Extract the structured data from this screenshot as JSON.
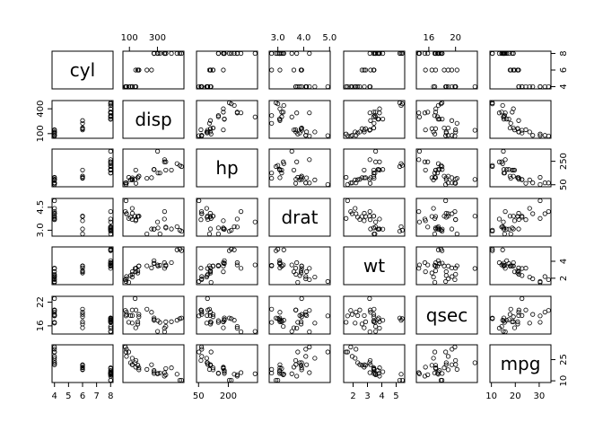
{
  "chart_data": {
    "type": "scatter",
    "kind": "scatterplot-matrix",
    "title": "",
    "variables": [
      "cyl",
      "disp",
      "hp",
      "drat",
      "wt",
      "qsec",
      "mpg"
    ],
    "ranges": {
      "cyl": [
        4,
        8
      ],
      "disp": [
        71.1,
        472
      ],
      "hp": [
        52,
        335
      ],
      "drat": [
        2.76,
        4.93
      ],
      "wt": [
        1.513,
        5.424
      ],
      "qsec": [
        14.5,
        22.9
      ],
      "mpg": [
        10.4,
        33.9
      ]
    },
    "axis_ticks": {
      "top": {
        "disp": [
          100,
          300
        ],
        "drat": [
          3.0,
          4.0,
          5.0
        ],
        "qsec": [
          16,
          20
        ]
      },
      "right": {
        "cyl": [
          4,
          6,
          8
        ],
        "hp": [
          50,
          250
        ],
        "wt": [
          2,
          4
        ],
        "mpg": [
          10,
          25
        ]
      },
      "left": {
        "disp": [
          100,
          400
        ],
        "drat": [
          3.0,
          4.5
        ],
        "qsec": [
          16,
          22
        ]
      },
      "bottom": {
        "cyl": [
          4,
          5,
          6,
          7,
          8
        ],
        "hp": [
          50,
          200
        ],
        "wt": [
          2,
          3,
          4,
          5
        ],
        "mpg": [
          10,
          20,
          30
        ]
      }
    },
    "observations": {
      "cyl": [
        6,
        6,
        4,
        6,
        8,
        6,
        8,
        4,
        4,
        6,
        6,
        8,
        8,
        8,
        8,
        8,
        8,
        4,
        4,
        4,
        4,
        8,
        8,
        8,
        8,
        4,
        4,
        4,
        8,
        6,
        8,
        4
      ],
      "disp": [
        160,
        160,
        108,
        258,
        360,
        225,
        360,
        146.7,
        140.8,
        167.6,
        167.6,
        275.8,
        275.8,
        275.8,
        472,
        460,
        440,
        78.7,
        75.7,
        71.1,
        120.1,
        318,
        304,
        350,
        400,
        79,
        120.3,
        95.1,
        351,
        145,
        301,
        121
      ],
      "hp": [
        110,
        110,
        93,
        110,
        175,
        105,
        245,
        62,
        95,
        123,
        123,
        180,
        180,
        180,
        205,
        215,
        230,
        66,
        52,
        65,
        97,
        150,
        150,
        245,
        175,
        66,
        91,
        113,
        264,
        175,
        335,
        109
      ],
      "drat": [
        3.9,
        3.9,
        3.85,
        3.08,
        3.15,
        2.76,
        3.21,
        3.69,
        3.92,
        3.92,
        3.92,
        3.07,
        3.07,
        3.07,
        2.93,
        3,
        3.23,
        4.08,
        4.93,
        4.22,
        3.7,
        2.76,
        3.15,
        3.73,
        3.08,
        4.08,
        4.43,
        3.77,
        4.22,
        3.62,
        3.54,
        4.11
      ],
      "wt": [
        2.62,
        2.875,
        2.32,
        3.215,
        3.44,
        3.46,
        3.57,
        3.19,
        3.15,
        3.44,
        3.44,
        4.07,
        3.73,
        3.78,
        5.25,
        5.424,
        5.345,
        2.2,
        1.615,
        1.835,
        2.465,
        3.52,
        3.435,
        3.84,
        3.845,
        1.935,
        2.14,
        1.513,
        3.17,
        2.77,
        3.57,
        2.78
      ],
      "qsec": [
        16.46,
        17.02,
        18.61,
        19.44,
        17.02,
        20.22,
        15.84,
        20,
        22.9,
        18.3,
        18.9,
        17.4,
        17.6,
        18,
        17.98,
        17.82,
        17.42,
        19.47,
        18.52,
        19.9,
        20.01,
        16.87,
        17.3,
        15.41,
        17.05,
        18.9,
        16.7,
        16.9,
        14.5,
        15.5,
        14.6,
        18.6
      ],
      "mpg": [
        21,
        21,
        22.8,
        21.4,
        18.7,
        18.1,
        14.3,
        24.4,
        22.8,
        19.2,
        17.8,
        16.4,
        17.3,
        15.2,
        10.4,
        10.4,
        14.7,
        32.4,
        30.4,
        33.9,
        21.5,
        15.5,
        15.2,
        13.3,
        19.2,
        27.3,
        26,
        30.4,
        15.8,
        19.7,
        15,
        21.4
      ]
    }
  }
}
